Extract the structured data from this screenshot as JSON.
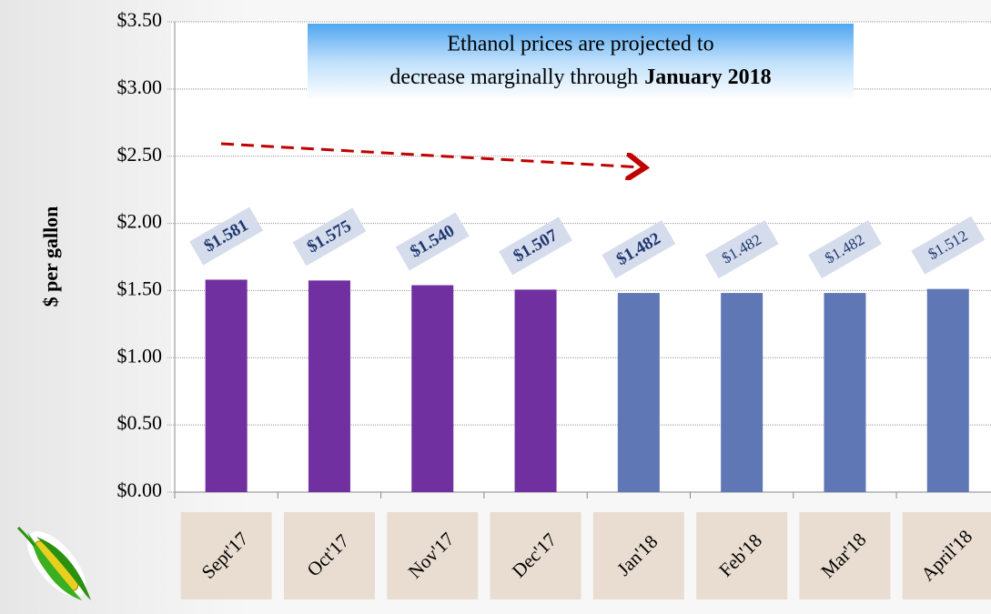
{
  "chart_data": {
    "type": "bar",
    "annotation": {
      "line1": "Ethanol prices are projected to",
      "line2": "decrease marginally through",
      "emphasis": "January 2018"
    },
    "y_label": "$ per gallon",
    "categories": [
      "Sept'17",
      "Oct'17",
      "Nov'17",
      "Dec'17",
      "Jan'18",
      "Feb'18",
      "Mar'18",
      "April'18"
    ],
    "values": [
      1.581,
      1.575,
      1.54,
      1.507,
      1.482,
      1.482,
      1.482,
      1.512
    ],
    "value_labels": [
      "$1.581",
      "$1.575",
      "$1.540",
      "$1.507",
      "$1.482",
      "$1.482",
      "$1.482",
      "$1.512"
    ],
    "colors": [
      "#7030a0",
      "#7030a0",
      "#7030a0",
      "#7030a0",
      "#5f77b5",
      "#5f77b5",
      "#5f77b5",
      "#5f77b5"
    ],
    "ylim": [
      0,
      3.5
    ],
    "yticks": [
      {
        "value": 0,
        "label": "$0.00"
      },
      {
        "value": 0.5,
        "label": "$0.50"
      },
      {
        "value": 1,
        "label": "$1.00"
      },
      {
        "value": 1.5,
        "label": "$1.50"
      },
      {
        "value": 2,
        "label": "$2.00"
      },
      {
        "value": 2.5,
        "label": "$2.50"
      },
      {
        "value": 3,
        "label": "$3.00"
      },
      {
        "value": 3.5,
        "label": "$3.50"
      }
    ],
    "grid": true
  }
}
